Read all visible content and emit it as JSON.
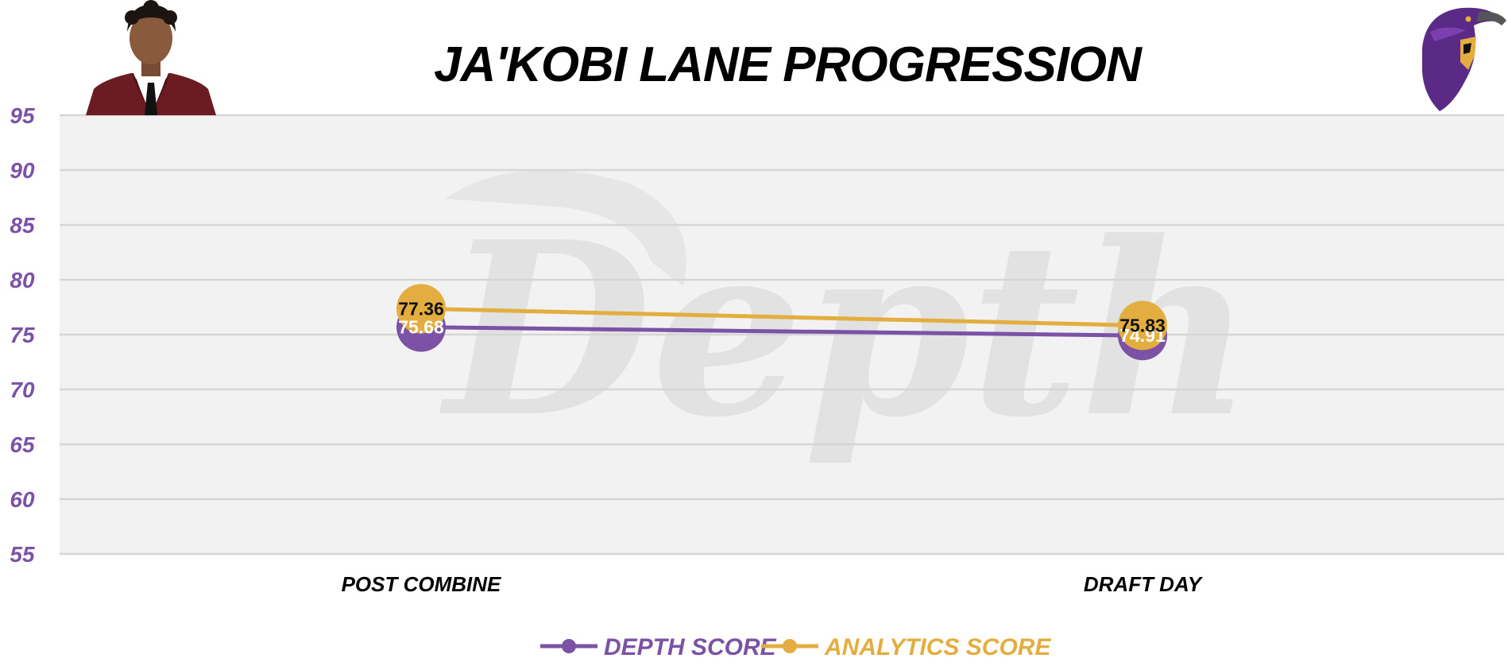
{
  "chart_data": {
    "type": "line",
    "title": "JA'KOBI LANE PROGRESSION",
    "categories": [
      "POST COMBINE",
      "DRAFT DAY"
    ],
    "series": [
      {
        "name": "DEPTH SCORE",
        "values": [
          75.68,
          74.91
        ],
        "color": "#7b52a6",
        "label_color": "#ffffff"
      },
      {
        "name": "ANALYTICS SCORE",
        "values": [
          77.36,
          75.83
        ],
        "color": "#e3ae3f",
        "label_color": "#111111"
      }
    ],
    "yticks": [
      95,
      90,
      85,
      80,
      75,
      70,
      65,
      60,
      55
    ],
    "ylim": [
      55,
      95
    ],
    "grid": true,
    "legend": "bottom-center",
    "watermark": "Depth",
    "colors": {
      "axis_text": "#7b52a6",
      "plot_bg": "#f2f2f2",
      "grid": "#d6d6d6"
    },
    "icons": {
      "left": "player-headshot-icon",
      "right": "raven-logo-icon"
    }
  }
}
